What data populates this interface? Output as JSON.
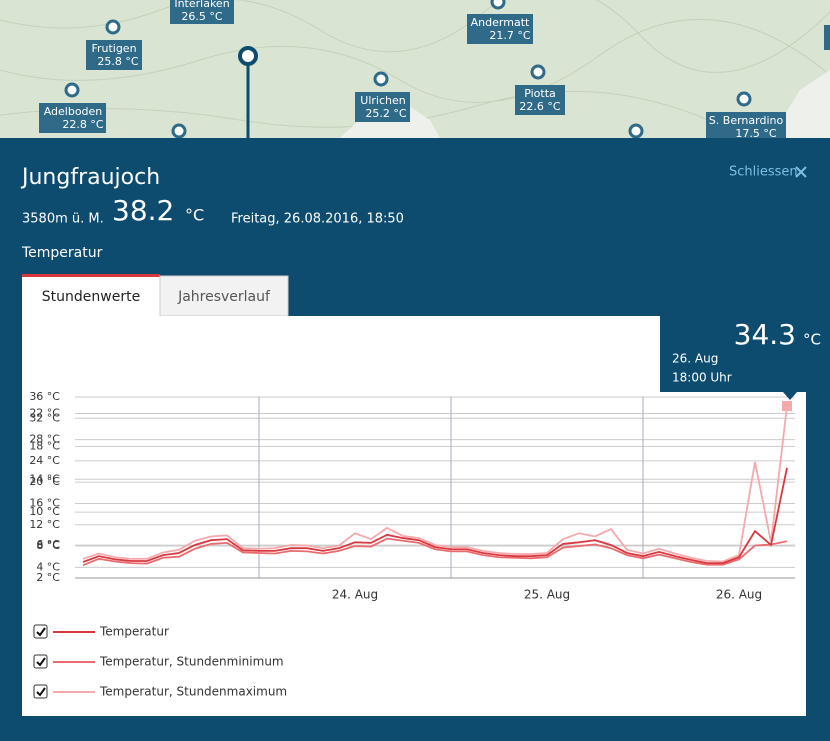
{
  "map": {
    "stations": [
      {
        "name": "Interlaken",
        "temp": "26.5 °C"
      },
      {
        "name": "Frutigen",
        "temp": "25.8 °C"
      },
      {
        "name": "Andermatt",
        "temp": "21.7 °C"
      },
      {
        "name": "Adelboden",
        "temp": "22.8 °C"
      },
      {
        "name": "Ulrichen",
        "temp": "25.2 °C"
      },
      {
        "name": "Piotta",
        "temp": "22.6 °C"
      },
      {
        "name": "S. Bernardino",
        "temp": "17.5 °C"
      }
    ]
  },
  "panel": {
    "title": "Jungfraujoch",
    "altitude": "3580m ü. M.",
    "value": "38.2",
    "unit": "°C",
    "datetime": "Freitag, 26.08.2016, 18:50",
    "close": "Schliessen",
    "parameter": "Temperatur",
    "tabs": [
      "Stundenwerte",
      "Jahresverlauf"
    ],
    "tooltip": {
      "value": "34.3",
      "unit": "°C",
      "date": "26. Aug",
      "time": "18:00 Uhr"
    }
  },
  "chart_data": {
    "type": "line",
    "categories": [
      null,
      null,
      null,
      null,
      null,
      null,
      null,
      null,
      null,
      null,
      null,
      null,
      null,
      null,
      null,
      null,
      null,
      "24. Aug",
      null,
      null,
      null,
      null,
      null,
      null,
      null,
      null,
      null,
      null,
      null,
      "25. Aug",
      null,
      null,
      null,
      null,
      null,
      null,
      null,
      null,
      null,
      null,
      null,
      "26. Aug",
      null,
      null,
      null
    ],
    "series": [
      {
        "name": "Temperatur",
        "color": "#d9383f",
        "values": [
          5.0,
          6.1,
          5.5,
          5.2,
          5.2,
          6.3,
          6.7,
          8.2,
          9.1,
          9.3,
          7.2,
          7.1,
          7.1,
          7.6,
          7.6,
          7.1,
          7.6,
          8.7,
          8.6,
          10.1,
          9.5,
          9.1,
          7.8,
          7.4,
          7.4,
          6.7,
          6.3,
          6.1,
          6.1,
          6.3,
          8.4,
          8.7,
          9.1,
          8.2,
          6.7,
          6.1,
          6.9,
          6.1,
          5.4,
          4.8,
          4.8,
          5.9,
          10.8,
          8.2,
          22.7
        ]
      },
      {
        "name": "Temperatur, Stundenminimum",
        "color": "#ea6b6f",
        "values": [
          4.4,
          5.6,
          5.1,
          4.8,
          4.7,
          5.8,
          6.0,
          7.5,
          8.4,
          8.6,
          6.8,
          6.7,
          6.6,
          7.1,
          7.0,
          6.6,
          7.1,
          8.0,
          7.9,
          9.4,
          9.0,
          8.6,
          7.4,
          7.0,
          7.0,
          6.3,
          5.9,
          5.8,
          5.7,
          5.9,
          7.7,
          8.0,
          8.3,
          7.6,
          6.3,
          5.7,
          6.4,
          5.7,
          5.0,
          4.5,
          4.5,
          5.5,
          8.1,
          8.3,
          8.9
        ]
      },
      {
        "name": "Temperatur, Stundenmaximum",
        "color": "#f4a9ac",
        "values": [
          5.6,
          6.6,
          5.9,
          5.6,
          5.6,
          6.8,
          7.3,
          9.0,
          9.8,
          10.0,
          7.6,
          7.5,
          7.6,
          8.2,
          8.1,
          7.6,
          8.1,
          10.4,
          9.3,
          11.4,
          9.9,
          9.5,
          8.2,
          7.8,
          7.8,
          7.1,
          6.7,
          6.5,
          6.5,
          6.7,
          9.3,
          10.4,
          9.8,
          11.2,
          7.3,
          6.6,
          7.5,
          6.6,
          5.8,
          5.2,
          5.1,
          6.3,
          23.8,
          8.7,
          34.3
        ]
      }
    ],
    "ylim": [
      2,
      36
    ],
    "yticks": [
      {
        "value": 2,
        "label": "2 °C"
      },
      {
        "value": 4,
        "label": "4 °C"
      },
      {
        "value": 8,
        "label": "8 °C"
      },
      {
        "value": 12,
        "label": "12 °C"
      },
      {
        "value": 16,
        "label": "16 °C"
      },
      {
        "value": 20,
        "label": "20 °C"
      },
      {
        "value": 24,
        "label": "24 °C"
      },
      {
        "value": 28,
        "label": "28 °C"
      },
      {
        "value": 32,
        "label": "32 °C"
      },
      {
        "value": 36,
        "label": "36 °C"
      }
    ],
    "y2lim": [
      2,
      24
    ],
    "y2ticks": [
      {
        "value": 6,
        "label": "6 °C"
      },
      {
        "value": 10,
        "label": "10 °C"
      },
      {
        "value": 14,
        "label": "14 °C"
      },
      {
        "value": 18,
        "label": "18 °C"
      },
      {
        "value": 22,
        "label": "22 °C"
      }
    ],
    "grid": true
  }
}
